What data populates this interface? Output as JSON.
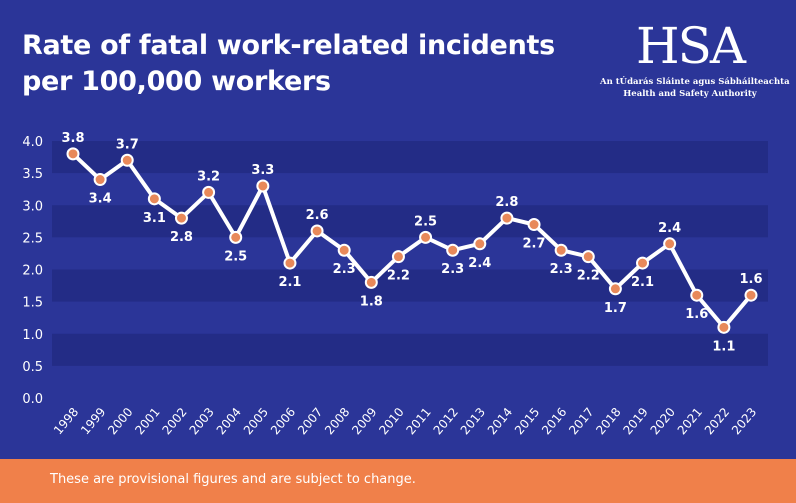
{
  "header": {
    "title_line1": "Rate of fatal work-related incidents",
    "title_line2": "per 100,000 workers"
  },
  "logo": {
    "mark": "HSA",
    "irish_name": "An tÚdarás Sláinte agus Sábháilteachta",
    "english_name": "Health and Safety Authority"
  },
  "footer": {
    "note": "These are provisional figures and are subject to change."
  },
  "colors": {
    "background": "#2b3598",
    "band": "#232c86",
    "line": "#ffffff",
    "marker": "#e8895a",
    "footer": "#f0804a"
  },
  "chart_data": {
    "type": "line",
    "title": "Rate of fatal work-related incidents per 100,000 workers",
    "xlabel": "",
    "ylabel": "",
    "ylim": [
      0,
      4
    ],
    "yticks": [
      "0.0",
      "0.5",
      "1.0",
      "1.5",
      "2.0",
      "2.5",
      "3.0",
      "3.5",
      "4.0"
    ],
    "grid": "alternating horizontal bands",
    "legend": "none",
    "categories": [
      "1998",
      "1999",
      "2000",
      "2001",
      "2002",
      "2003",
      "2004",
      "2005",
      "2006",
      "2007",
      "2008",
      "2009",
      "2010",
      "2011",
      "2012",
      "2013",
      "2014",
      "2015",
      "2016",
      "2017",
      "2018",
      "2019",
      "2020",
      "2021",
      "2022",
      "2023"
    ],
    "values": [
      3.8,
      3.4,
      3.7,
      3.1,
      2.8,
      3.2,
      2.5,
      3.3,
      2.1,
      2.6,
      2.3,
      1.8,
      2.2,
      2.5,
      2.3,
      2.4,
      2.8,
      2.7,
      2.3,
      2.2,
      1.7,
      2.1,
      2.4,
      1.6,
      1.1,
      1.6
    ],
    "labels": [
      "3.8",
      "3.4",
      "3.7",
      "3.1",
      "2.8",
      "3.2",
      "2.5",
      "3.3",
      "2.1",
      "2.6",
      "2.3",
      "1.8",
      "2.2",
      "2.5",
      "2.3",
      "2.4",
      "2.8",
      "2.7",
      "2.3",
      "2.2",
      "1.7",
      "2.1",
      "2.4",
      "1.6",
      "1.1",
      "1.6"
    ]
  }
}
